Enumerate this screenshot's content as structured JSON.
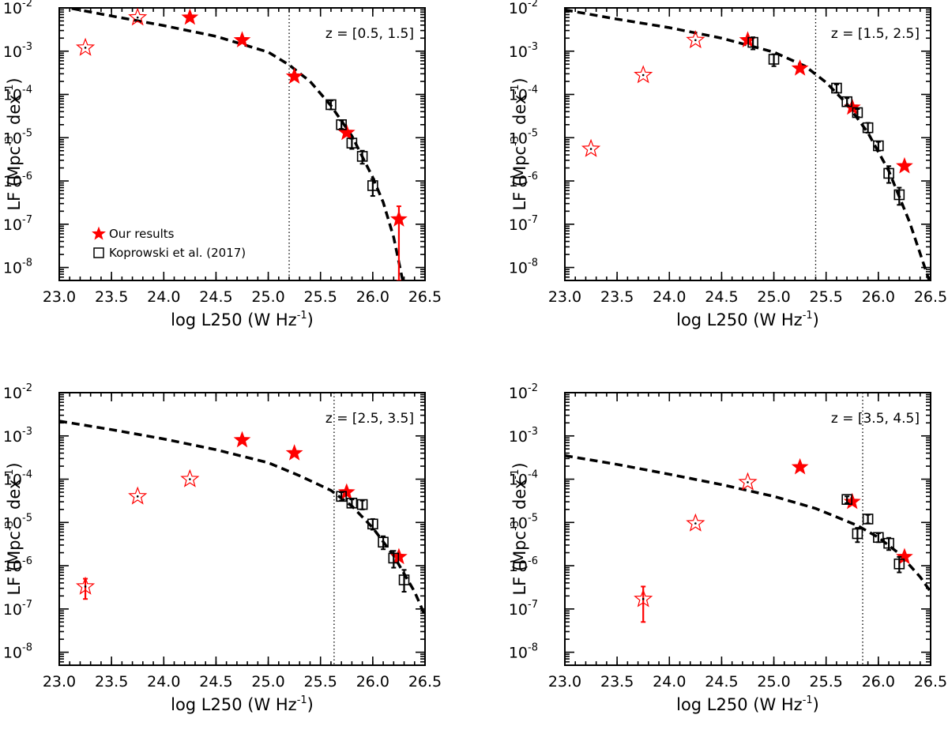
{
  "chart_data": [
    {
      "type": "scatter",
      "annotation": "z = [0.5, 1.5]",
      "xlabel": "log L250 (W Hz",
      "xlabel_sup": "-1",
      "xlabel_end": ")",
      "ylabel": "LF (Mpc",
      "ylabel_sup1": "-3",
      "ylabel_mid": "dex",
      "ylabel_sup2": "-1",
      "ylabel_end": ")",
      "xlim": [
        23.0,
        26.5
      ],
      "ylim_log10": [
        -8.3,
        -2.0
      ],
      "y_scale": "log",
      "x_ticks": [
        "23.0",
        "23.5",
        "24.0",
        "24.5",
        "25.0",
        "25.5",
        "26.0",
        "26.5"
      ],
      "y_ticks": [
        -8,
        -7,
        -6,
        -5,
        -4,
        -3,
        -2
      ],
      "legend": {
        "placement": "bottom-left",
        "entries": [
          "Our results",
          "Koprowski et al. (2017)"
        ]
      },
      "vline_x": 25.2,
      "fit_curve": {
        "style": "dashed",
        "x": [
          23.0,
          23.5,
          24.0,
          24.5,
          25.0,
          25.2,
          25.4,
          25.6,
          25.8,
          26.0,
          26.1,
          26.2,
          26.3
        ],
        "y": [
          0.011,
          0.0065,
          0.0039,
          0.0022,
          0.00095,
          0.00048,
          0.0002,
          5.5e-05,
          1.1e-05,
          1.2e-06,
          3.2e-07,
          5e-08,
          3.5e-09
        ]
      },
      "series": [
        {
          "name": "Our results",
          "marker": "filled-star",
          "color": "#ff0000",
          "x": [
            24.25,
            24.75,
            25.25,
            25.75,
            26.25
          ],
          "y": [
            0.006,
            0.0018,
            0.00026,
            1.3e-05,
            1.3e-07
          ],
          "yerr_low": [
            null,
            null,
            null,
            null,
            5e-09
          ],
          "yerr_high": [
            null,
            null,
            null,
            null,
            2.6e-07
          ]
        },
        {
          "name": "",
          "marker": "open-star",
          "color": "#ff0000",
          "x": [
            23.25,
            23.75
          ],
          "y": [
            0.0012,
            0.006
          ],
          "yerr_low": [
            null,
            null
          ],
          "yerr_high": [
            null,
            null
          ]
        },
        {
          "name": "Koprowski et al. (2017)",
          "marker": "open-square",
          "color": "#000000",
          "x": [
            25.6,
            25.7,
            25.8,
            25.9,
            26.0
          ],
          "y": [
            5.8e-05,
            2e-05,
            7.5e-06,
            3.7e-06,
            7.8e-07
          ],
          "yerr_low": [
            4.5e-05,
            1.6e-05,
            5.5e-06,
            2.5e-06,
            4.5e-07
          ],
          "yerr_high": [
            7.2e-05,
            2.5e-05,
            9.5e-06,
            5e-06,
            1.1e-06
          ]
        }
      ]
    },
    {
      "type": "scatter",
      "annotation": "z = [1.5, 2.5]",
      "xlabel": "log L250 (W Hz",
      "xlabel_sup": "-1",
      "xlabel_end": ")",
      "ylabel": "LF (Mpc",
      "ylabel_sup1": "-3",
      "ylabel_mid": "dex",
      "ylabel_sup2": "-1",
      "ylabel_end": ")",
      "xlim": [
        23.0,
        26.5
      ],
      "ylim_log10": [
        -8.3,
        -2.0
      ],
      "y_scale": "log",
      "x_ticks": [
        "23.0",
        "23.5",
        "24.0",
        "24.5",
        "25.0",
        "25.5",
        "26.0",
        "26.5"
      ],
      "y_ticks": [
        -8,
        -7,
        -6,
        -5,
        -4,
        -3,
        -2
      ],
      "legend": null,
      "vline_x": 25.4,
      "fit_curve": {
        "style": "dashed",
        "x": [
          23.0,
          23.5,
          24.0,
          24.5,
          25.0,
          25.3,
          25.5,
          25.7,
          25.9,
          26.1,
          26.3,
          26.5
        ],
        "y": [
          0.009,
          0.0055,
          0.0035,
          0.002,
          0.00095,
          0.00045,
          0.00019,
          6e-05,
          1.3e-05,
          1.7e-06,
          1.1e-07,
          4e-09
        ]
      },
      "series": [
        {
          "name": "",
          "marker": "filled-star",
          "color": "#ff0000",
          "x": [
            24.75,
            25.25,
            25.75,
            26.25
          ],
          "y": [
            0.0018,
            0.0004,
            5e-05,
            2.2e-06
          ],
          "yerr_low": [
            null,
            null,
            null,
            null
          ],
          "yerr_high": [
            null,
            null,
            null,
            null
          ]
        },
        {
          "name": "",
          "marker": "open-star",
          "color": "#ff0000",
          "x": [
            23.25,
            23.75,
            24.25
          ],
          "y": [
            5.5e-06,
            0.00028,
            0.0018
          ],
          "yerr_low": [
            null,
            null,
            null
          ],
          "yerr_high": [
            null,
            null,
            null
          ]
        },
        {
          "name": "",
          "marker": "open-square",
          "color": "#000000",
          "x": [
            24.8,
            25.0,
            25.6,
            25.7,
            25.8,
            25.9,
            26.0,
            26.1,
            26.2
          ],
          "y": [
            0.0016,
            0.00065,
            0.00014,
            6.8e-05,
            3.8e-05,
            1.7e-05,
            6.5e-06,
            1.5e-06,
            4.8e-07
          ],
          "yerr_low": [
            0.0011,
            0.00045,
            0.00011,
            5.5e-05,
            3e-05,
            1.3e-05,
            5e-06,
            9e-07,
            2.8e-07
          ],
          "yerr_high": [
            0.0021,
            0.00085,
            0.00017,
            8.2e-05,
            4.6e-05,
            2.2e-05,
            8e-06,
            2.2e-06,
            7e-07
          ]
        }
      ]
    },
    {
      "type": "scatter",
      "annotation": "z = [2.5, 3.5]",
      "xlabel": "log L250 (W Hz",
      "xlabel_sup": "-1",
      "xlabel_end": ")",
      "ylabel": "LF (Mpc",
      "ylabel_sup1": "-3",
      "ylabel_mid": "dex",
      "ylabel_sup2": "-1",
      "ylabel_end": ")",
      "xlim": [
        23.0,
        26.5
      ],
      "ylim_log10": [
        -8.3,
        -2.0
      ],
      "y_scale": "log",
      "x_ticks": [
        "23.0",
        "23.5",
        "24.0",
        "24.5",
        "25.0",
        "25.5",
        "26.0",
        "26.5"
      ],
      "y_ticks": [
        -8,
        -7,
        -6,
        -5,
        -4,
        -3,
        -2
      ],
      "legend": null,
      "vline_x": 25.63,
      "fit_curve": {
        "style": "dashed",
        "x": [
          23.0,
          23.5,
          24.0,
          24.5,
          25.0,
          25.3,
          25.6,
          25.8,
          26.0,
          26.2,
          26.4,
          26.5
        ],
        "y": [
          0.0022,
          0.0014,
          0.00085,
          0.00048,
          0.00024,
          0.00012,
          5.5e-05,
          2.4e-05,
          7.5e-06,
          1.7e-06,
          2.5e-07,
          7e-08
        ]
      },
      "series": [
        {
          "name": "",
          "marker": "filled-star",
          "color": "#ff0000",
          "x": [
            24.75,
            25.25,
            25.75,
            26.25
          ],
          "y": [
            0.0008,
            0.0004,
            5e-05,
            1.6e-06
          ],
          "yerr_low": [
            null,
            null,
            null,
            null
          ],
          "yerr_high": [
            null,
            null,
            null,
            null
          ]
        },
        {
          "name": "",
          "marker": "open-star",
          "color": "#ff0000",
          "x": [
            23.25,
            23.75,
            24.25
          ],
          "y": [
            3.3e-07,
            4e-05,
            0.0001
          ],
          "yerr_low": [
            1.7e-07,
            null,
            null
          ],
          "yerr_high": [
            5e-07,
            null,
            null
          ]
        },
        {
          "name": "",
          "marker": "open-square",
          "color": "#000000",
          "x": [
            25.7,
            25.8,
            25.9,
            26.0,
            26.1,
            26.2,
            26.3
          ],
          "y": [
            4e-05,
            2.8e-05,
            2.6e-05,
            9.2e-06,
            3.5e-06,
            1.5e-06,
            4.7e-07
          ],
          "yerr_low": [
            3.2e-05,
            2.2e-05,
            2e-05,
            6.8e-06,
            2.4e-06,
            9e-07,
            2.5e-07
          ],
          "yerr_high": [
            5e-05,
            3.4e-05,
            3.2e-05,
            1.2e-05,
            4.8e-06,
            2.2e-06,
            8e-07
          ]
        }
      ]
    },
    {
      "type": "scatter",
      "annotation": "z = [3.5, 4.5]",
      "xlabel": "log L250 (W Hz",
      "xlabel_sup": "-1",
      "xlabel_end": ")",
      "ylabel": "LF (Mpc",
      "ylabel_sup1": "-3",
      "ylabel_mid": "dex",
      "ylabel_sup2": "-1",
      "ylabel_end": ")",
      "xlim": [
        23.0,
        26.5
      ],
      "ylim_log10": [
        -8.3,
        -2.0
      ],
      "y_scale": "log",
      "x_ticks": [
        "23.0",
        "23.5",
        "24.0",
        "24.5",
        "25.0",
        "25.5",
        "26.0",
        "26.5"
      ],
      "y_ticks": [
        -8,
        -7,
        -6,
        -5,
        -4,
        -3,
        -2
      ],
      "legend": null,
      "vline_x": 25.85,
      "fit_curve": {
        "style": "dashed",
        "x": [
          23.0,
          23.5,
          24.0,
          24.5,
          25.0,
          25.4,
          25.8,
          26.0,
          26.2,
          26.4,
          26.5
        ],
        "y": [
          0.00035,
          0.00022,
          0.00013,
          7.5e-05,
          4e-05,
          2.1e-05,
          8.5e-06,
          4.5e-06,
          1.9e-06,
          5.5e-07,
          2.5e-07
        ]
      },
      "series": [
        {
          "name": "",
          "marker": "filled-star",
          "color": "#ff0000",
          "x": [
            25.25,
            25.75,
            26.25
          ],
          "y": [
            0.00019,
            3e-05,
            1.6e-06
          ],
          "yerr_low": [
            null,
            null,
            null
          ],
          "yerr_high": [
            null,
            null,
            null
          ]
        },
        {
          "name": "",
          "marker": "open-star",
          "color": "#ff0000",
          "x": [
            23.75,
            24.25,
            24.75
          ],
          "y": [
            1.7e-07,
            9.5e-06,
            8.5e-05
          ],
          "yerr_low": [
            5e-08,
            null,
            null
          ],
          "yerr_high": [
            3.3e-07,
            null,
            null
          ]
        },
        {
          "name": "",
          "marker": "open-square",
          "color": "#000000",
          "x": [
            25.7,
            25.8,
            25.9,
            26.0,
            26.1,
            26.2
          ],
          "y": [
            3.4e-05,
            5.5e-06,
            1.2e-05,
            4.5e-06,
            3.3e-06,
            1.1e-06
          ],
          "yerr_low": [
            2.8e-05,
            3.5e-06,
            9.5e-06,
            3.5e-06,
            2.3e-06,
            7e-07
          ],
          "yerr_high": [
            4e-05,
            7.5e-06,
            1.5e-05,
            5.6e-06,
            4.4e-06,
            1.6e-06
          ]
        }
      ]
    }
  ]
}
